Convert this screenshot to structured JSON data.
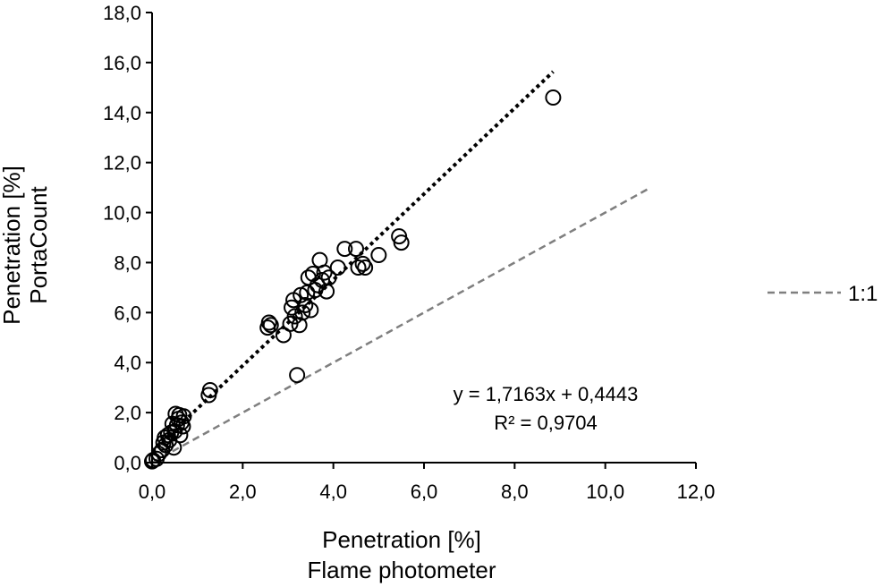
{
  "chart_data": {
    "type": "scatter",
    "xlabel": [
      "Penetration [%]",
      "Flame photometer"
    ],
    "ylabel": [
      "Penetration [%]",
      "PortaCount"
    ],
    "xlim": [
      0,
      12
    ],
    "ylim": [
      0,
      18
    ],
    "x_ticks": [
      "0,0",
      "2,0",
      "4,0",
      "6,0",
      "8,0",
      "10,0",
      "12,0"
    ],
    "y_ticks": [
      "0,0",
      "2,0",
      "4,0",
      "6,0",
      "8,0",
      "10,0",
      "12,0",
      "14,0",
      "16,0",
      "18,0"
    ],
    "x_tick_values": [
      0,
      2,
      4,
      6,
      8,
      10,
      12
    ],
    "y_tick_values": [
      0,
      2,
      4,
      6,
      8,
      10,
      12,
      14,
      16,
      18
    ],
    "grid": false,
    "legend": {
      "position": "right",
      "entries": [
        "1:1"
      ]
    },
    "annotation": {
      "equation": "y = 1,7163x + 0,4443",
      "r_squared": "R² = 0,9704"
    },
    "regression_line": {
      "slope": 1.7163,
      "intercept": 0.4443,
      "x_range": [
        0,
        8.85
      ],
      "color": "#000000",
      "style": "dotted"
    },
    "identity_line": {
      "slope": 1,
      "intercept": 0,
      "x_range": [
        0,
        11
      ],
      "color": "#7f7f7f",
      "style": "dashed"
    },
    "points": [
      {
        "x": 0.0,
        "y": 0.05
      },
      {
        "x": 0.02,
        "y": 0.1
      },
      {
        "x": 0.1,
        "y": 0.15
      },
      {
        "x": 0.15,
        "y": 0.35
      },
      {
        "x": 0.22,
        "y": 0.5
      },
      {
        "x": 0.25,
        "y": 0.8
      },
      {
        "x": 0.28,
        "y": 1.0
      },
      {
        "x": 0.3,
        "y": 0.7
      },
      {
        "x": 0.35,
        "y": 1.1
      },
      {
        "x": 0.38,
        "y": 0.9
      },
      {
        "x": 0.42,
        "y": 1.2
      },
      {
        "x": 0.45,
        "y": 1.55
      },
      {
        "x": 0.48,
        "y": 0.6
      },
      {
        "x": 0.5,
        "y": 1.25
      },
      {
        "x": 0.52,
        "y": 1.95
      },
      {
        "x": 0.55,
        "y": 1.5
      },
      {
        "x": 0.58,
        "y": 1.75
      },
      {
        "x": 0.6,
        "y": 1.9
      },
      {
        "x": 0.62,
        "y": 1.1
      },
      {
        "x": 0.65,
        "y": 1.6
      },
      {
        "x": 0.68,
        "y": 1.45
      },
      {
        "x": 0.7,
        "y": 1.85
      },
      {
        "x": 1.25,
        "y": 2.7
      },
      {
        "x": 1.28,
        "y": 2.9
      },
      {
        "x": 2.55,
        "y": 5.4
      },
      {
        "x": 2.58,
        "y": 5.6
      },
      {
        "x": 2.62,
        "y": 5.5
      },
      {
        "x": 2.9,
        "y": 5.1
      },
      {
        "x": 3.05,
        "y": 5.55
      },
      {
        "x": 3.08,
        "y": 6.2
      },
      {
        "x": 3.12,
        "y": 6.5
      },
      {
        "x": 3.15,
        "y": 5.85
      },
      {
        "x": 3.2,
        "y": 3.5
      },
      {
        "x": 3.25,
        "y": 5.5
      },
      {
        "x": 3.28,
        "y": 6.7
      },
      {
        "x": 3.32,
        "y": 6.0
      },
      {
        "x": 3.38,
        "y": 6.3
      },
      {
        "x": 3.42,
        "y": 6.8
      },
      {
        "x": 3.45,
        "y": 7.4
      },
      {
        "x": 3.5,
        "y": 6.1
      },
      {
        "x": 3.55,
        "y": 7.55
      },
      {
        "x": 3.6,
        "y": 6.9
      },
      {
        "x": 3.65,
        "y": 7.1
      },
      {
        "x": 3.7,
        "y": 8.1
      },
      {
        "x": 3.75,
        "y": 7.3
      },
      {
        "x": 3.8,
        "y": 7.6
      },
      {
        "x": 3.85,
        "y": 6.85
      },
      {
        "x": 3.9,
        "y": 7.4
      },
      {
        "x": 4.1,
        "y": 7.8
      },
      {
        "x": 4.25,
        "y": 8.55
      },
      {
        "x": 4.5,
        "y": 8.55
      },
      {
        "x": 4.55,
        "y": 7.8
      },
      {
        "x": 4.65,
        "y": 7.95
      },
      {
        "x": 4.7,
        "y": 7.8
      },
      {
        "x": 5.0,
        "y": 8.3
      },
      {
        "x": 5.45,
        "y": 9.05
      },
      {
        "x": 5.5,
        "y": 8.8
      },
      {
        "x": 8.85,
        "y": 14.6
      }
    ]
  }
}
